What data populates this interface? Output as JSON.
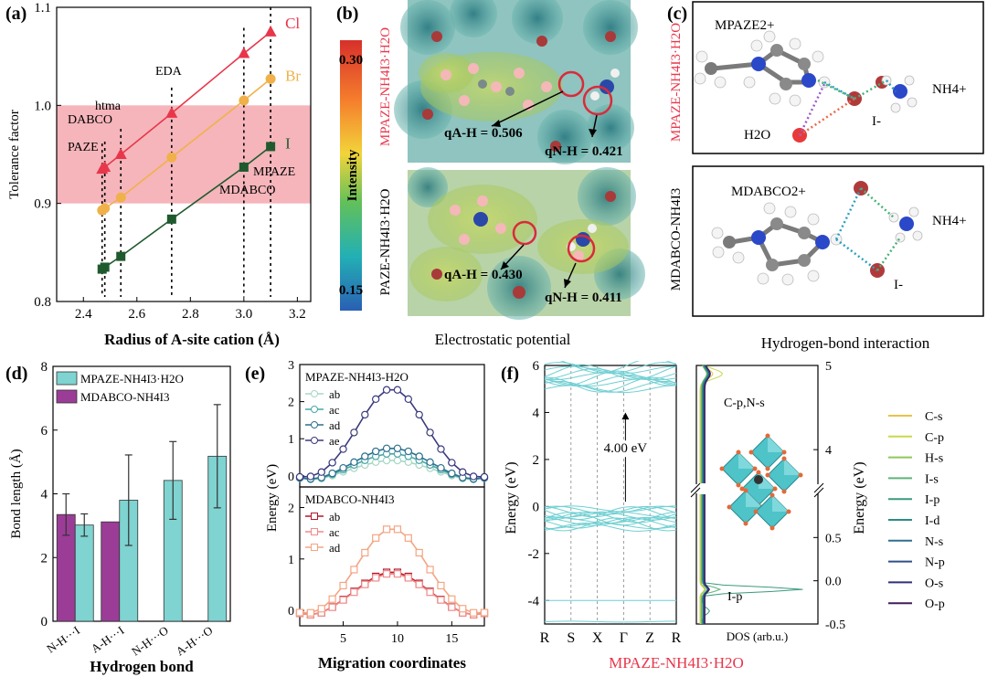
{
  "panel_labels": {
    "a": "(a)",
    "b": "(b)",
    "c": "(c)",
    "d": "(d)",
    "e": "(e)",
    "f": "(f)"
  },
  "panel_a": {
    "xlabel": "Radius of A-site cation (Å)",
    "ylabel": "Tolerance factor",
    "xticks": [
      "2.4",
      "2.6",
      "2.8",
      "3.0",
      "3.2"
    ],
    "yticks": [
      "0.8",
      "0.9",
      "1.0",
      "1.1"
    ],
    "band_color": "#f3a3aa",
    "cation_labels": [
      "DABCO",
      "PAZE",
      "htma",
      "EDA",
      "MDABCO",
      "MPAZE"
    ],
    "chart_data": {
      "type": "line",
      "xlim": [
        2.3,
        3.25
      ],
      "ylim": [
        0.8,
        1.1
      ],
      "band": [
        0.9,
        1.0
      ],
      "x": [
        2.47,
        2.48,
        2.54,
        2.73,
        3.0,
        3.1
      ],
      "series": [
        {
          "name": "Cl",
          "color": "#e8364a",
          "marker": "triangle",
          "values": [
            0.935,
            0.937,
            0.95,
            0.992,
            1.053,
            1.075
          ]
        },
        {
          "name": "Br",
          "color": "#f0b14a",
          "marker": "circle",
          "values": [
            0.893,
            0.895,
            0.906,
            0.947,
            1.005,
            1.027
          ]
        },
        {
          "name": "I",
          "color": "#1f5a2e",
          "marker": "square",
          "values": [
            0.833,
            0.835,
            0.846,
            0.884,
            0.937,
            0.958
          ]
        }
      ]
    }
  },
  "panel_b": {
    "caption": "Electrostatic potential",
    "top_label": "MPAZE-NH4I3·H2O",
    "bottom_label": "PAZE-NH4I3·H2O",
    "colorbar_max": "0.30",
    "colorbar_min": "0.15",
    "colorbar_title": "Intensity",
    "top_q_ah": "qA-H = 0.506",
    "top_q_nh": "qN-H = 0.421",
    "bot_q_ah": "qA-H = 0.430",
    "bot_q_nh": "qN-H = 0.411"
  },
  "panel_c": {
    "caption": "Hydrogen-bond interaction",
    "top_side": "MPAZE-NH4I3·H2O",
    "bottom_side": "MDABCO-NH4I3",
    "top_cation": "MPAZE2+",
    "bottom_cation": "MDABCO2+",
    "nh4": "NH4+",
    "iodide": "I-",
    "water": "H2O"
  },
  "panel_d": {
    "xlabel": "Hydrogen bond",
    "ylabel": "Bond length (Å)",
    "yticks": [
      "0",
      "2",
      "4",
      "6",
      "8"
    ],
    "categories": [
      "N-H···I",
      "A-H···I",
      "N-H···O",
      "A-H···O"
    ],
    "legend": [
      "MPAZE-NH4I3·H2O",
      "MDABCO-NH4I3"
    ],
    "chart_data": {
      "type": "bar",
      "ylim": [
        0,
        8
      ],
      "categories": [
        "N-H···I",
        "A-H···I",
        "N-H···O",
        "A-H···O"
      ],
      "series": [
        {
          "name": "MDABCO-NH4I3",
          "color": "#9b3d97",
          "values": [
            3.35,
            3.12,
            null,
            null
          ],
          "errors": [
            0.65,
            0,
            null,
            null
          ]
        },
        {
          "name": "MPAZE-NH4I3·H2O",
          "color": "#7fd3d1",
          "values": [
            3.02,
            3.8,
            4.42,
            5.18
          ],
          "errors": [
            0.35,
            1.42,
            1.22,
            1.62
          ]
        }
      ]
    }
  },
  "panel_e": {
    "xlabel": "Migration coordinates",
    "ylabel": "Energy (eV)",
    "top_title": "MPAZE-NH4I3-H2O",
    "bottom_title": "MDABCO-NH4I3",
    "xticks": [
      "5",
      "10",
      "15"
    ],
    "top_yticks": [
      "0",
      "1",
      "2",
      "3"
    ],
    "bot_yticks": [
      "0",
      "1",
      "2"
    ],
    "chart_data": [
      {
        "type": "line",
        "xlim": [
          1,
          18
        ],
        "ylim": [
          -0.3,
          3.0
        ],
        "series": [
          {
            "name": "ab",
            "color": "#a6d8c4",
            "peak": 0.42
          },
          {
            "name": "ac",
            "color": "#4aa6a6",
            "peak": 0.6
          },
          {
            "name": "ad",
            "color": "#2d6f8e",
            "peak": 0.75
          },
          {
            "name": "ae",
            "color": "#3b3a7e",
            "peak": 2.35
          }
        ]
      },
      {
        "type": "line",
        "xlim": [
          1,
          18
        ],
        "ylim": [
          -0.3,
          2.4
        ],
        "series": [
          {
            "name": "ab",
            "color": "#b2182b",
            "peak": 0.75
          },
          {
            "name": "ac",
            "color": "#f08a8a",
            "peak": 0.72
          },
          {
            "name": "ad",
            "color": "#f4a582",
            "peak": 1.6
          }
        ]
      }
    ]
  },
  "panel_f": {
    "caption": "MPAZE-NH4I3·H2O",
    "ylabel": "Energy (eV)",
    "kpoints": [
      "R",
      "S",
      "X",
      "Γ",
      "Z",
      "R"
    ],
    "yticks": [
      "-4",
      "-2",
      "0",
      "2",
      "4",
      "6"
    ],
    "gap": "4.00 eV",
    "dos_label": "DOS (arb.u.)",
    "dos_right_label": "Energy (eV)",
    "dos_ticks_top": [
      "4",
      "5"
    ],
    "dos_ticks_bottom": [
      "-0.5",
      "0.0",
      "0.5"
    ],
    "cp_label": "C-p,N-s",
    "ip_label": "I-p",
    "legend": [
      {
        "name": "C-s",
        "color": "#e8c24a"
      },
      {
        "name": "C-p",
        "color": "#c8d84a"
      },
      {
        "name": "H-s",
        "color": "#8fc85a"
      },
      {
        "name": "I-s",
        "color": "#5fb37a"
      },
      {
        "name": "I-p",
        "color": "#3a9a7e"
      },
      {
        "name": "I-d",
        "color": "#2d8a86"
      },
      {
        "name": "N-s",
        "color": "#2e6f8e"
      },
      {
        "name": "N-p",
        "color": "#2f4f8a"
      },
      {
        "name": "O-s",
        "color": "#312f7a"
      },
      {
        "name": "O-p",
        "color": "#3d1f5a"
      }
    ]
  }
}
